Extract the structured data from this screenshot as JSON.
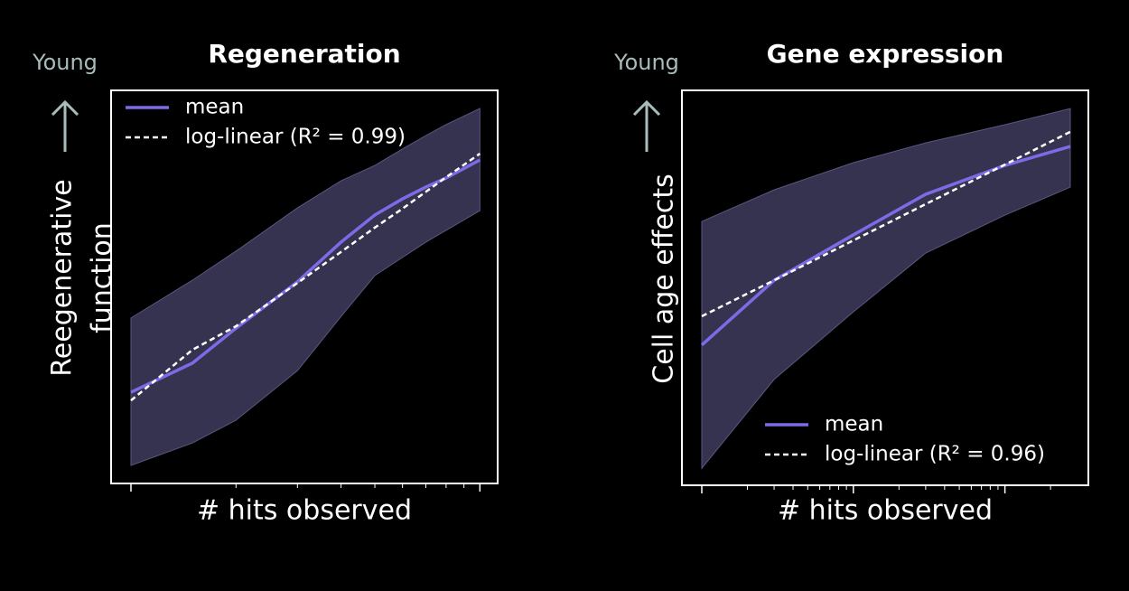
{
  "chart_data": [
    {
      "type": "line",
      "title": "Regeneration",
      "annotation": "Young",
      "ylabel": [
        "Reegenerative",
        "function"
      ],
      "xlabel": "# hits observed",
      "xscale": "log",
      "xlim": [
        1,
        10.1
      ],
      "ylim": [
        0,
        1
      ],
      "xticks": [
        1,
        10
      ],
      "xminorticks": [
        2,
        3,
        4,
        5,
        6,
        7,
        8,
        9
      ],
      "legend": "upper left",
      "x": [
        1,
        1.5,
        2,
        3,
        4,
        5,
        6,
        7,
        8,
        10
      ],
      "band": {
        "color": "#3b3858",
        "lower": [
          0.046,
          0.103,
          0.161,
          0.287,
          0.425,
          0.529,
          0.575,
          0.614,
          0.644,
          0.694
        ],
        "upper": [
          0.421,
          0.517,
          0.591,
          0.701,
          0.77,
          0.809,
          0.851,
          0.885,
          0.913,
          0.954
        ]
      },
      "series": [
        {
          "name": "mean",
          "color": "#7b6be6",
          "style": "solid",
          "values": [
            0.232,
            0.306,
            0.395,
            0.513,
            0.614,
            0.683,
            0.724,
            0.754,
            0.777,
            0.823
          ]
        },
        {
          "name": "log-linear (R² = 0.99)",
          "color": "#ffffff",
          "style": "dashed",
          "values": [
            0.211,
            0.34,
            0.4,
            0.51,
            0.589,
            0.651,
            0.699,
            0.742,
            0.779,
            0.839
          ]
        }
      ]
    },
    {
      "type": "line",
      "title": "Gene expression",
      "annotation": "Young",
      "ylabel": [
        "Cell age effects"
      ],
      "xlabel": "# hits observed",
      "xscale": "log",
      "xlim": [
        1,
        270
      ],
      "ylim": [
        0,
        1
      ],
      "xticks": [
        1,
        10,
        100
      ],
      "xminorticks": [
        2,
        3,
        4,
        5,
        6,
        7,
        8,
        9,
        20,
        30,
        40,
        50,
        60,
        70,
        80,
        90,
        200
      ],
      "legend": "lower right",
      "x": [
        1,
        3,
        10,
        30,
        100,
        270
      ],
      "band": {
        "color": "#3b3858",
        "lower": [
          0.043,
          0.268,
          0.439,
          0.588,
          0.684,
          0.755
        ],
        "upper": [
          0.668,
          0.748,
          0.817,
          0.867,
          0.913,
          0.954
        ]
      },
      "series": [
        {
          "name": "mean",
          "color": "#7b6be6",
          "style": "solid",
          "values": [
            0.355,
            0.519,
            0.634,
            0.737,
            0.81,
            0.858
          ]
        },
        {
          "name": "log-linear (R² = 0.96)",
          "color": "#ffffff",
          "style": "dashed",
          "values": [
            0.428,
            0.519,
            0.62,
            0.712,
            0.812,
            0.895
          ]
        }
      ]
    }
  ]
}
